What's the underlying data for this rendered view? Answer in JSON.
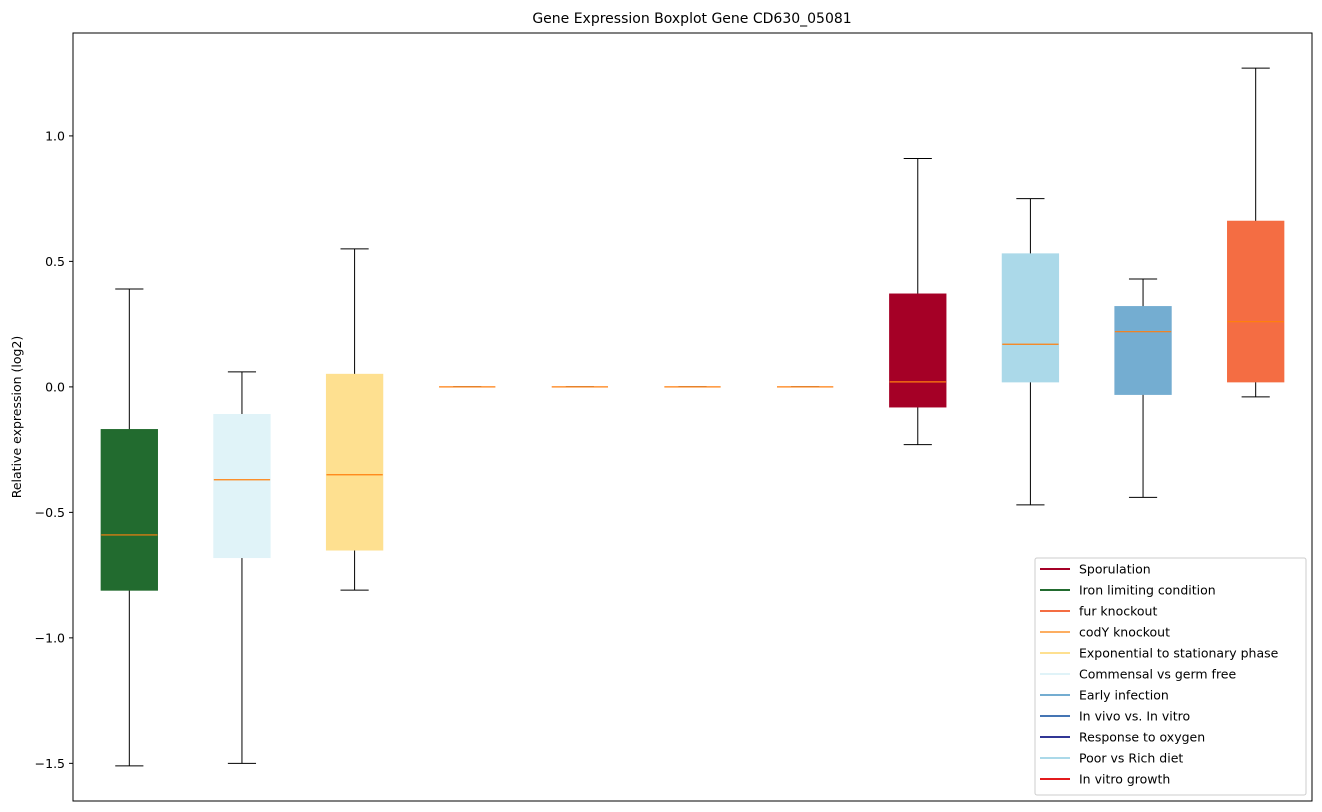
{
  "chart_data": {
    "type": "boxplot",
    "title": "Gene Expression Boxplot Gene CD630_05081",
    "xlabel": "",
    "ylabel": "Relative expression (log2)",
    "ylim": [
      -1.65,
      1.41
    ],
    "yticks": [
      {
        "value": 1.0,
        "label": "1.0"
      },
      {
        "value": 0.5,
        "label": "0.5"
      },
      {
        "value": 0.0,
        "label": "0.0"
      },
      {
        "value": -0.5,
        "label": "−0.5"
      },
      {
        "value": -1.0,
        "label": "−1.0"
      },
      {
        "value": -1.5,
        "label": "−1.5"
      }
    ],
    "grid": false,
    "legend_position": "lower-right",
    "median_color": "#ff7f0e",
    "boxes": [
      {
        "group": "Iron limiting condition",
        "color": "#226b2f",
        "whisker_low": -1.51,
        "q1": -0.81,
        "median": -0.59,
        "q3": -0.17,
        "whisker_high": 0.39
      },
      {
        "group": "Commensal vs germ free",
        "color": "#e0f3f8",
        "whisker_low": -1.5,
        "q1": -0.68,
        "median": -0.37,
        "q3": -0.11,
        "whisker_high": 0.06
      },
      {
        "group": "Exponential to stationary phase",
        "color": "#fee090",
        "whisker_low": -0.81,
        "q1": -0.65,
        "median": -0.35,
        "q3": 0.05,
        "whisker_high": 0.55
      },
      {
        "group": "codY knockout",
        "color": "#fdae61",
        "whisker_low": 0.0,
        "q1": 0.0,
        "median": 0.0,
        "q3": 0.0,
        "whisker_high": 0.0
      },
      {
        "group": "In vivo vs. In vitro",
        "color": "#4575b4",
        "whisker_low": 0.0,
        "q1": 0.0,
        "median": 0.0,
        "q3": 0.0,
        "whisker_high": 0.0
      },
      {
        "group": "Response to oxygen",
        "color": "#313695",
        "whisker_low": 0.0,
        "q1": 0.0,
        "median": 0.0,
        "q3": 0.0,
        "whisker_high": 0.0
      },
      {
        "group": "In vitro growth",
        "color": "#e31a1c",
        "whisker_low": 0.0,
        "q1": 0.0,
        "median": 0.0,
        "q3": 0.0,
        "whisker_high": 0.0
      },
      {
        "group": "Sporulation",
        "color": "#a50026",
        "whisker_low": -0.23,
        "q1": -0.08,
        "median": 0.02,
        "q3": 0.37,
        "whisker_high": 0.91
      },
      {
        "group": "Poor vs Rich diet",
        "color": "#abd9e9",
        "whisker_low": -0.47,
        "q1": 0.02,
        "median": 0.17,
        "q3": 0.53,
        "whisker_high": 0.75
      },
      {
        "group": "Early infection",
        "color": "#74add1",
        "whisker_low": -0.44,
        "q1": -0.03,
        "median": 0.22,
        "q3": 0.32,
        "whisker_high": 0.43
      },
      {
        "group": "fur knockout",
        "color": "#f46d43",
        "whisker_low": -0.04,
        "q1": 0.02,
        "median": 0.26,
        "q3": 0.66,
        "whisker_high": 1.27
      }
    ],
    "legend": [
      {
        "label": "Sporulation",
        "color": "#a50026"
      },
      {
        "label": "Iron limiting condition",
        "color": "#226b2f"
      },
      {
        "label": "fur knockout",
        "color": "#f46d43"
      },
      {
        "label": "codY knockout",
        "color": "#fdae61"
      },
      {
        "label": "Exponential to stationary phase",
        "color": "#fee090"
      },
      {
        "label": "Commensal vs germ free",
        "color": "#e0f3f8"
      },
      {
        "label": "Early infection",
        "color": "#74add1"
      },
      {
        "label": "In vivo vs. In vitro",
        "color": "#4575b4"
      },
      {
        "label": "Response to oxygen",
        "color": "#313695"
      },
      {
        "label": "Poor vs Rich diet",
        "color": "#abd9e9"
      },
      {
        "label": "In vitro growth",
        "color": "#e31a1c"
      }
    ]
  }
}
